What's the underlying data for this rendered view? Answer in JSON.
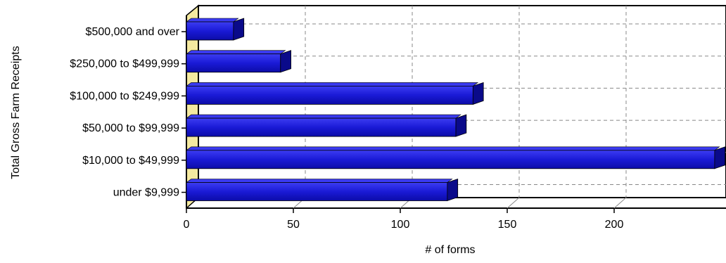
{
  "chart_data": {
    "type": "bar",
    "orientation": "horizontal",
    "title": "",
    "xlabel": "# of forms",
    "ylabel": "Total Gross Farm Receipts",
    "categories": [
      "$500,000 and over",
      "$250,000 to $499,999",
      "$100,000 to $249,999",
      "$50,000 to $99,999",
      "$10,000 to $49,999",
      "under $9,999"
    ],
    "values": [
      22,
      44,
      134,
      126,
      247,
      122
    ],
    "xlim": [
      0,
      250
    ],
    "xticks": [
      0,
      50,
      100,
      150,
      200
    ],
    "grid": true,
    "legend": "none",
    "colors": {
      "bar_front": "#1818d8",
      "bar_top": "#3a3af0",
      "bar_side": "#0a0a8a",
      "wall": "#f4e9a0",
      "grid": "#888888"
    }
  }
}
